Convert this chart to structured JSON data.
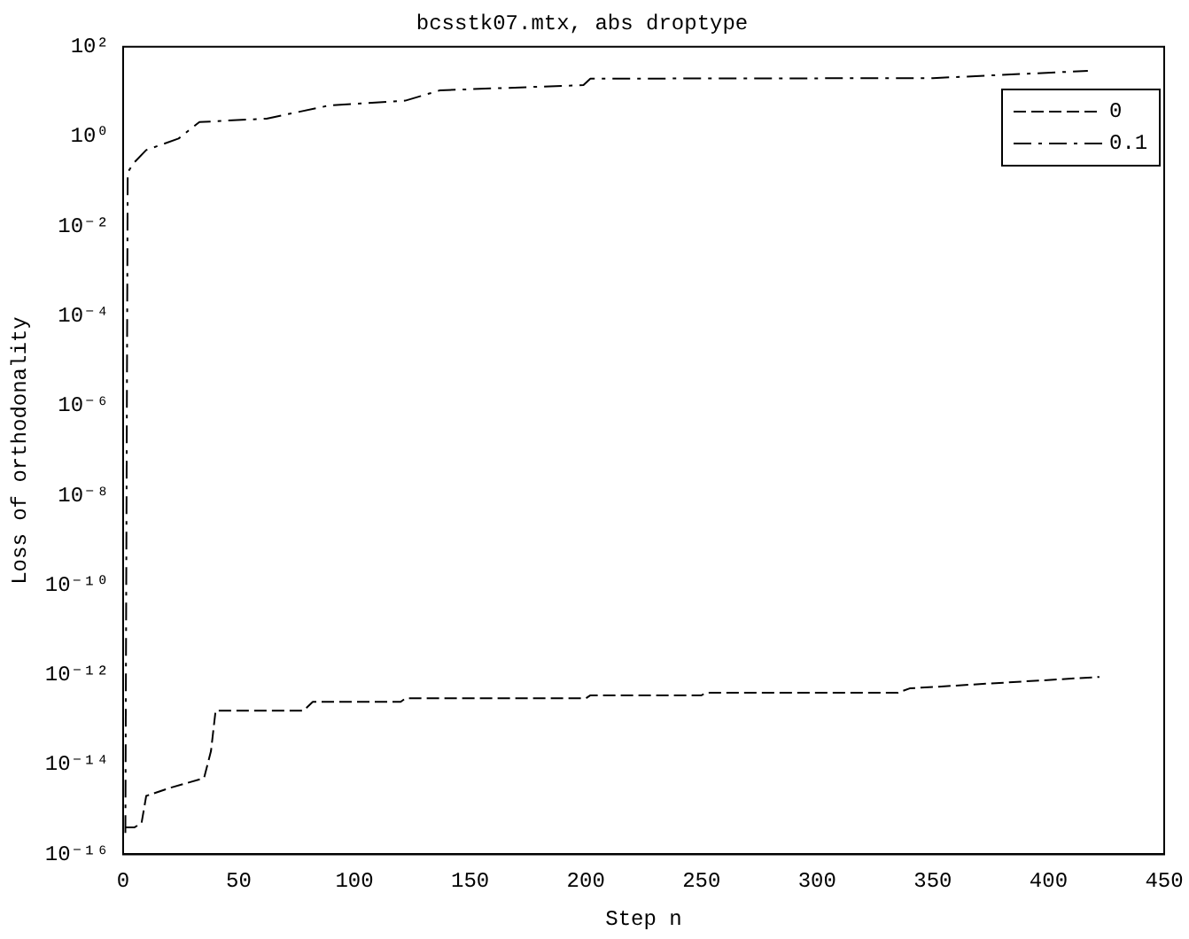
{
  "chart_data": {
    "type": "line",
    "title": "bcsstk07.mtx, abs droptype",
    "xlabel": "Step n",
    "ylabel": "Loss of orthodonality",
    "log": "y",
    "xlim": [
      0,
      450
    ],
    "xticks": [
      0,
      50,
      100,
      150,
      200,
      250,
      300,
      350,
      400,
      450
    ],
    "ylim": [
      1e-16,
      100
    ],
    "yticks": [
      {
        "value": 1e-16,
        "label": "10⁻¹⁶"
      },
      {
        "value": 1e-14,
        "label": "10⁻¹⁴"
      },
      {
        "value": 1e-12,
        "label": "10⁻¹²"
      },
      {
        "value": 1e-10,
        "label": "10⁻¹⁰"
      },
      {
        "value": 1e-08,
        "label": "10⁻⁸"
      },
      {
        "value": 1e-06,
        "label": "10⁻⁶"
      },
      {
        "value": 0.0001,
        "label": "10⁻⁴"
      },
      {
        "value": 0.01,
        "label": "10⁻²"
      },
      {
        "value": 1,
        "label": "10⁰"
      },
      {
        "value": 100,
        "label": "10²"
      }
    ],
    "grid": false,
    "legend": "top right",
    "marker": "none",
    "series": [
      {
        "name": "0",
        "color": "#000000",
        "line_style": "dashed",
        "x": [
          1,
          5,
          8,
          10,
          20,
          35,
          38,
          40,
          78,
          82,
          120,
          122,
          200,
          202,
          250,
          252,
          335,
          340,
          422
        ],
        "values": [
          4e-16,
          4e-16,
          5e-16,
          2e-15,
          3e-15,
          5e-15,
          2e-14,
          1.6e-13,
          1.6e-13,
          2.5e-13,
          2.5e-13,
          3e-13,
          3e-13,
          3.5e-13,
          3.5e-13,
          4e-13,
          4e-13,
          5e-13,
          9e-13
        ]
      },
      {
        "name": "0.1",
        "color": "#000000",
        "line_style": "dashdot",
        "x": [
          1,
          2,
          5,
          10,
          24,
          33,
          62,
          89,
          122,
          137,
          199,
          202,
          350,
          417
        ],
        "values": [
          3e-16,
          0.16,
          0.27,
          0.5,
          0.9,
          2.1,
          2.5,
          4.9,
          6.3,
          10.7,
          14,
          19.5,
          20,
          29
        ]
      }
    ]
  }
}
